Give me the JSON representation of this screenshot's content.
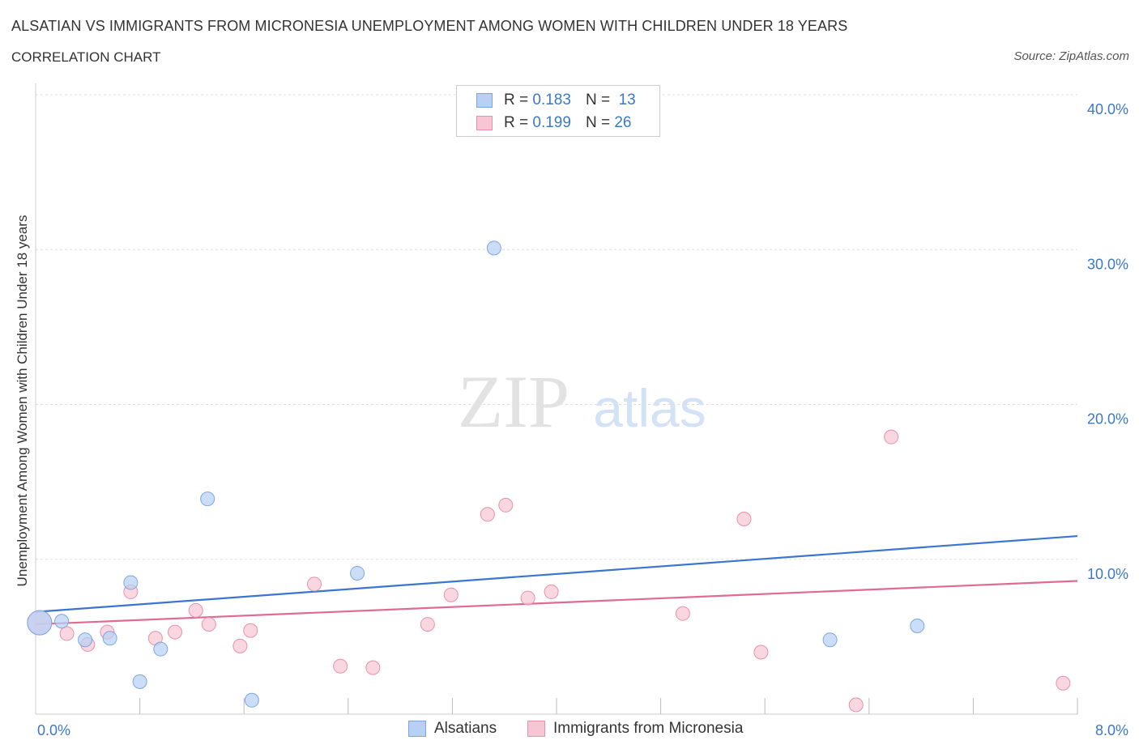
{
  "header": {
    "title": "ALSATIAN VS IMMIGRANTS FROM MICRONESIA UNEMPLOYMENT AMONG WOMEN WITH CHILDREN UNDER 18 YEARS",
    "subtitle": "CORRELATION CHART",
    "source": "Source: ZipAtlas.com"
  },
  "watermark": {
    "zip": "ZIP",
    "atlas": "atlas"
  },
  "legend": {
    "rows": [
      {
        "r_label": "R =",
        "r_value": "0.183",
        "n_label": "N =",
        "n_value": "13"
      },
      {
        "r_label": "R =",
        "r_value": "0.199",
        "n_label": "N =",
        "n_value": "26"
      }
    ],
    "series": [
      "Alsatians",
      "Immigrants from Micronesia"
    ]
  },
  "colors": {
    "blue_fill": "#b7d0f3",
    "blue_stroke": "#7aa6e0",
    "blue_line": "#3a76cf",
    "pink_fill": "#f7c6d4",
    "pink_stroke": "#e98fac",
    "pink_line": "#e06a94",
    "tick_text": "#3b78c8"
  },
  "chart_data": {
    "type": "scatter",
    "title": "ALSATIAN VS IMMIGRANTS FROM MICRONESIA UNEMPLOYMENT AMONG WOMEN WITH CHILDREN UNDER 18 YEARS",
    "ylabel": "Unemployment Among Women with Children Under 18 years",
    "xlabel": "",
    "xlim": [
      0,
      8
    ],
    "ylim": [
      0,
      40
    ],
    "x_tick_labels": [
      "0.0%",
      "8.0%"
    ],
    "y_ticks": [
      10,
      20,
      30,
      40
    ],
    "y_tick_labels": [
      "10.0%",
      "20.0%",
      "30.0%",
      "40.0%"
    ],
    "series": [
      {
        "name": "Alsatians",
        "r": 0.183,
        "n": 13,
        "points": [
          {
            "x": 0.03,
            "y": 5.9,
            "big": true
          },
          {
            "x": 0.2,
            "y": 6.0
          },
          {
            "x": 0.38,
            "y": 4.8
          },
          {
            "x": 0.57,
            "y": 4.9
          },
          {
            "x": 0.73,
            "y": 8.5
          },
          {
            "x": 0.8,
            "y": 2.1
          },
          {
            "x": 0.96,
            "y": 4.2
          },
          {
            "x": 1.32,
            "y": 13.9
          },
          {
            "x": 1.66,
            "y": 0.9
          },
          {
            "x": 2.47,
            "y": 9.1
          },
          {
            "x": 3.52,
            "y": 30.1
          },
          {
            "x": 6.1,
            "y": 4.8
          },
          {
            "x": 6.77,
            "y": 5.7
          }
        ],
        "trend": {
          "x0": 0,
          "y0": 6.6,
          "x1": 8,
          "y1": 11.5
        }
      },
      {
        "name": "Immigrants from Micronesia",
        "r": 0.199,
        "n": 26,
        "points": [
          {
            "x": 0.03,
            "y": 5.9,
            "big": true
          },
          {
            "x": 0.24,
            "y": 5.2
          },
          {
            "x": 0.4,
            "y": 4.5
          },
          {
            "x": 0.55,
            "y": 5.3
          },
          {
            "x": 0.73,
            "y": 7.9
          },
          {
            "x": 0.92,
            "y": 4.9
          },
          {
            "x": 1.07,
            "y": 5.3
          },
          {
            "x": 1.23,
            "y": 6.7
          },
          {
            "x": 1.33,
            "y": 5.8
          },
          {
            "x": 1.57,
            "y": 4.4
          },
          {
            "x": 1.65,
            "y": 5.4
          },
          {
            "x": 2.14,
            "y": 8.4
          },
          {
            "x": 2.34,
            "y": 3.1
          },
          {
            "x": 2.59,
            "y": 3.0
          },
          {
            "x": 3.01,
            "y": 5.8
          },
          {
            "x": 3.19,
            "y": 7.7
          },
          {
            "x": 3.47,
            "y": 12.9
          },
          {
            "x": 3.61,
            "y": 13.5
          },
          {
            "x": 3.78,
            "y": 7.5
          },
          {
            "x": 3.96,
            "y": 7.9
          },
          {
            "x": 4.97,
            "y": 6.5
          },
          {
            "x": 5.44,
            "y": 12.6
          },
          {
            "x": 5.57,
            "y": 4.0
          },
          {
            "x": 6.3,
            "y": 0.6
          },
          {
            "x": 6.57,
            "y": 17.9
          },
          {
            "x": 7.89,
            "y": 2.0
          }
        ],
        "trend": {
          "x0": 0,
          "y0": 5.8,
          "x1": 8,
          "y1": 8.6
        }
      }
    ]
  }
}
